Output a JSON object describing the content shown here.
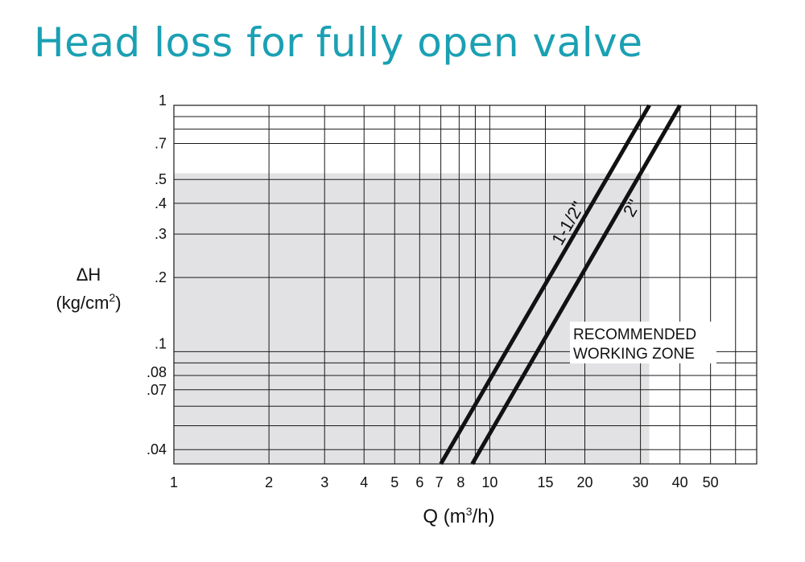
{
  "chart_data": {
    "type": "line",
    "title": "Head loss for fully open valve",
    "xlabel": {
      "main": "Q (m",
      "sup": "3",
      "tail": "/h)"
    },
    "ylabel": {
      "line1": "ΔH",
      "line2_main": "(kg/cm",
      "line2_sup": "2",
      "line2_tail": ")"
    },
    "x_scale": "log",
    "y_scale": "log",
    "xlim": [
      1,
      70
    ],
    "ylim": [
      0.035,
      1
    ],
    "x_ticks": [
      {
        "value": 1,
        "label": "1"
      },
      {
        "value": 2,
        "label": "2"
      },
      {
        "value": 3,
        "label": "3"
      },
      {
        "value": 4,
        "label": "4"
      },
      {
        "value": 5,
        "label": "5"
      },
      {
        "value": 6,
        "label": "6"
      },
      {
        "value": 7,
        "label": "7"
      },
      {
        "value": 8,
        "label": "8"
      },
      {
        "value": 10,
        "label": "10"
      },
      {
        "value": 15,
        "label": "15"
      },
      {
        "value": 20,
        "label": "20"
      },
      {
        "value": 30,
        "label": "30"
      },
      {
        "value": 40,
        "label": "40"
      },
      {
        "value": 50,
        "label": "50"
      }
    ],
    "x_grid": [
      1,
      2,
      3,
      4,
      5,
      6,
      7,
      8,
      9,
      10,
      15,
      20,
      30,
      40,
      50,
      60,
      70
    ],
    "y_ticks": [
      {
        "value": 1,
        "label": "1"
      },
      {
        "value": 0.7,
        "label": ".7"
      },
      {
        "value": 0.5,
        "label": ".5"
      },
      {
        "value": 0.4,
        "label": ".4"
      },
      {
        "value": 0.3,
        "label": ".3"
      },
      {
        "value": 0.2,
        "label": ".2"
      },
      {
        "value": 0.1,
        "label": ".1"
      },
      {
        "value": 0.08,
        "label": ".08"
      },
      {
        "value": 0.07,
        "label": ".07"
      },
      {
        "value": 0.04,
        "label": ".04"
      }
    ],
    "y_grid": [
      1,
      0.9,
      0.8,
      0.7,
      0.5,
      0.4,
      0.3,
      0.2,
      0.1,
      0.09,
      0.08,
      0.07,
      0.06,
      0.05,
      0.04
    ],
    "shaded_zone": {
      "label_line1": "RECOMMENDED",
      "label_line2": "WORKING ZONE",
      "x_max": 32,
      "y_max": 0.53
    },
    "series": [
      {
        "name": "1-1/2\"",
        "x": [
          7.0,
          32.0
        ],
        "y": [
          0.035,
          1.0
        ]
      },
      {
        "name": "2\"",
        "x": [
          8.8,
          40.0
        ],
        "y": [
          0.035,
          1.0
        ]
      }
    ],
    "grid": true
  }
}
